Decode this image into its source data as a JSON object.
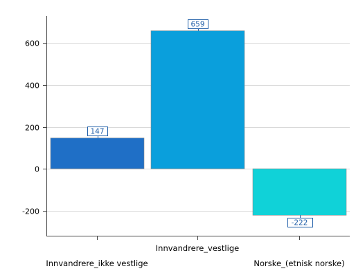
{
  "chart_data": {
    "type": "bar",
    "categories": [
      "Innvandrere_ikke vestlige",
      "Innvandrere_vestlige",
      "Norske_(etnisk norske)"
    ],
    "values": [
      147,
      659,
      -222
    ],
    "colors": [
      "#1f6fc6",
      "#0a9fdc",
      "#10d2d8"
    ],
    "label_color": "#1f5ea8",
    "yticks": [
      -200,
      0,
      200,
      400,
      600
    ],
    "ylim": [
      -320,
      730
    ],
    "grid": true,
    "title": "",
    "xlabel": "",
    "ylabel": ""
  }
}
